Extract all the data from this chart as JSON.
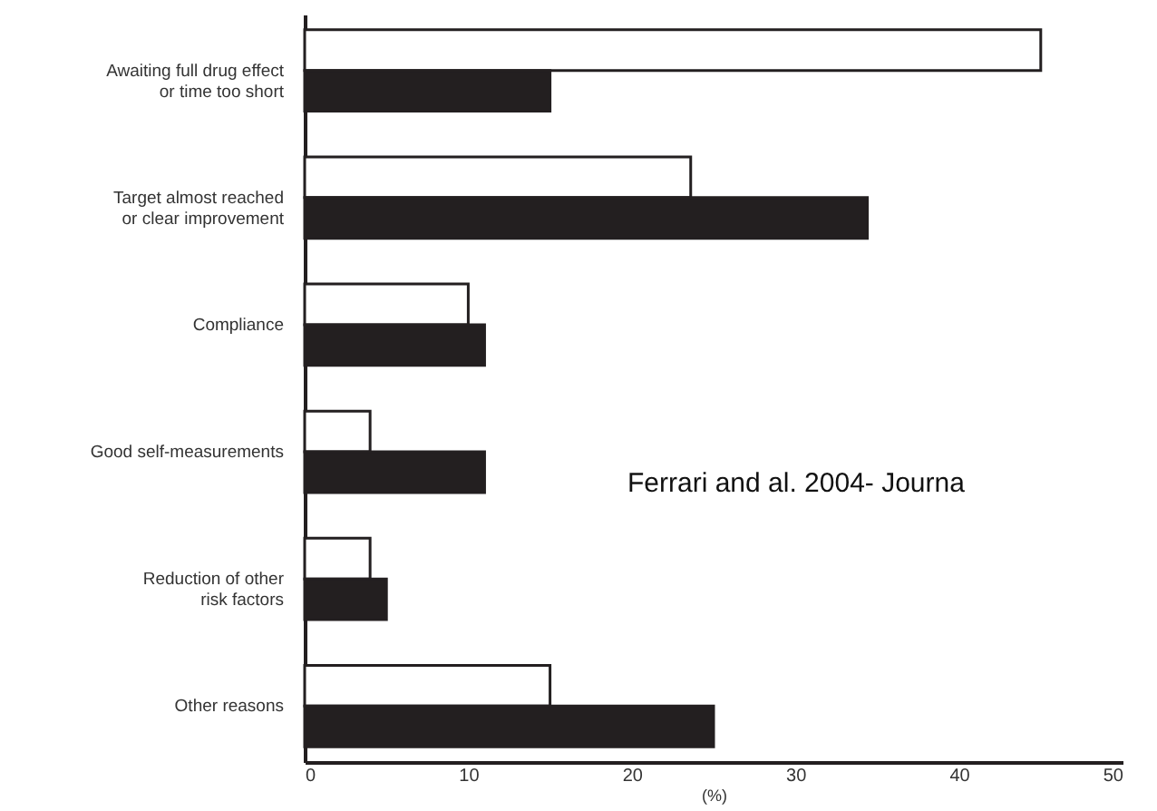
{
  "chart_data": {
    "type": "bar",
    "orientation": "horizontal",
    "xlabel": "(%)",
    "categories": [
      "Awaiting full drug effect\nor time too short",
      "Target almost reached\nor clear improvement",
      "Compliance",
      "Good self-measurements",
      "Reduction of other\nrisk factors",
      "Other reasons"
    ],
    "series": [
      {
        "color": "#ffffff",
        "values": [
          45,
          23.6,
          10,
          4,
          4,
          15
        ]
      },
      {
        "color": "#231f20",
        "values": [
          15,
          34.4,
          11,
          11,
          5,
          25
        ]
      }
    ],
    "xlim": [
      0,
      50
    ],
    "xticks": [
      0,
      10,
      20,
      30,
      40,
      50
    ],
    "grid": false,
    "annotations": [
      "Ferrari and  al. 2004- Journa"
    ]
  }
}
